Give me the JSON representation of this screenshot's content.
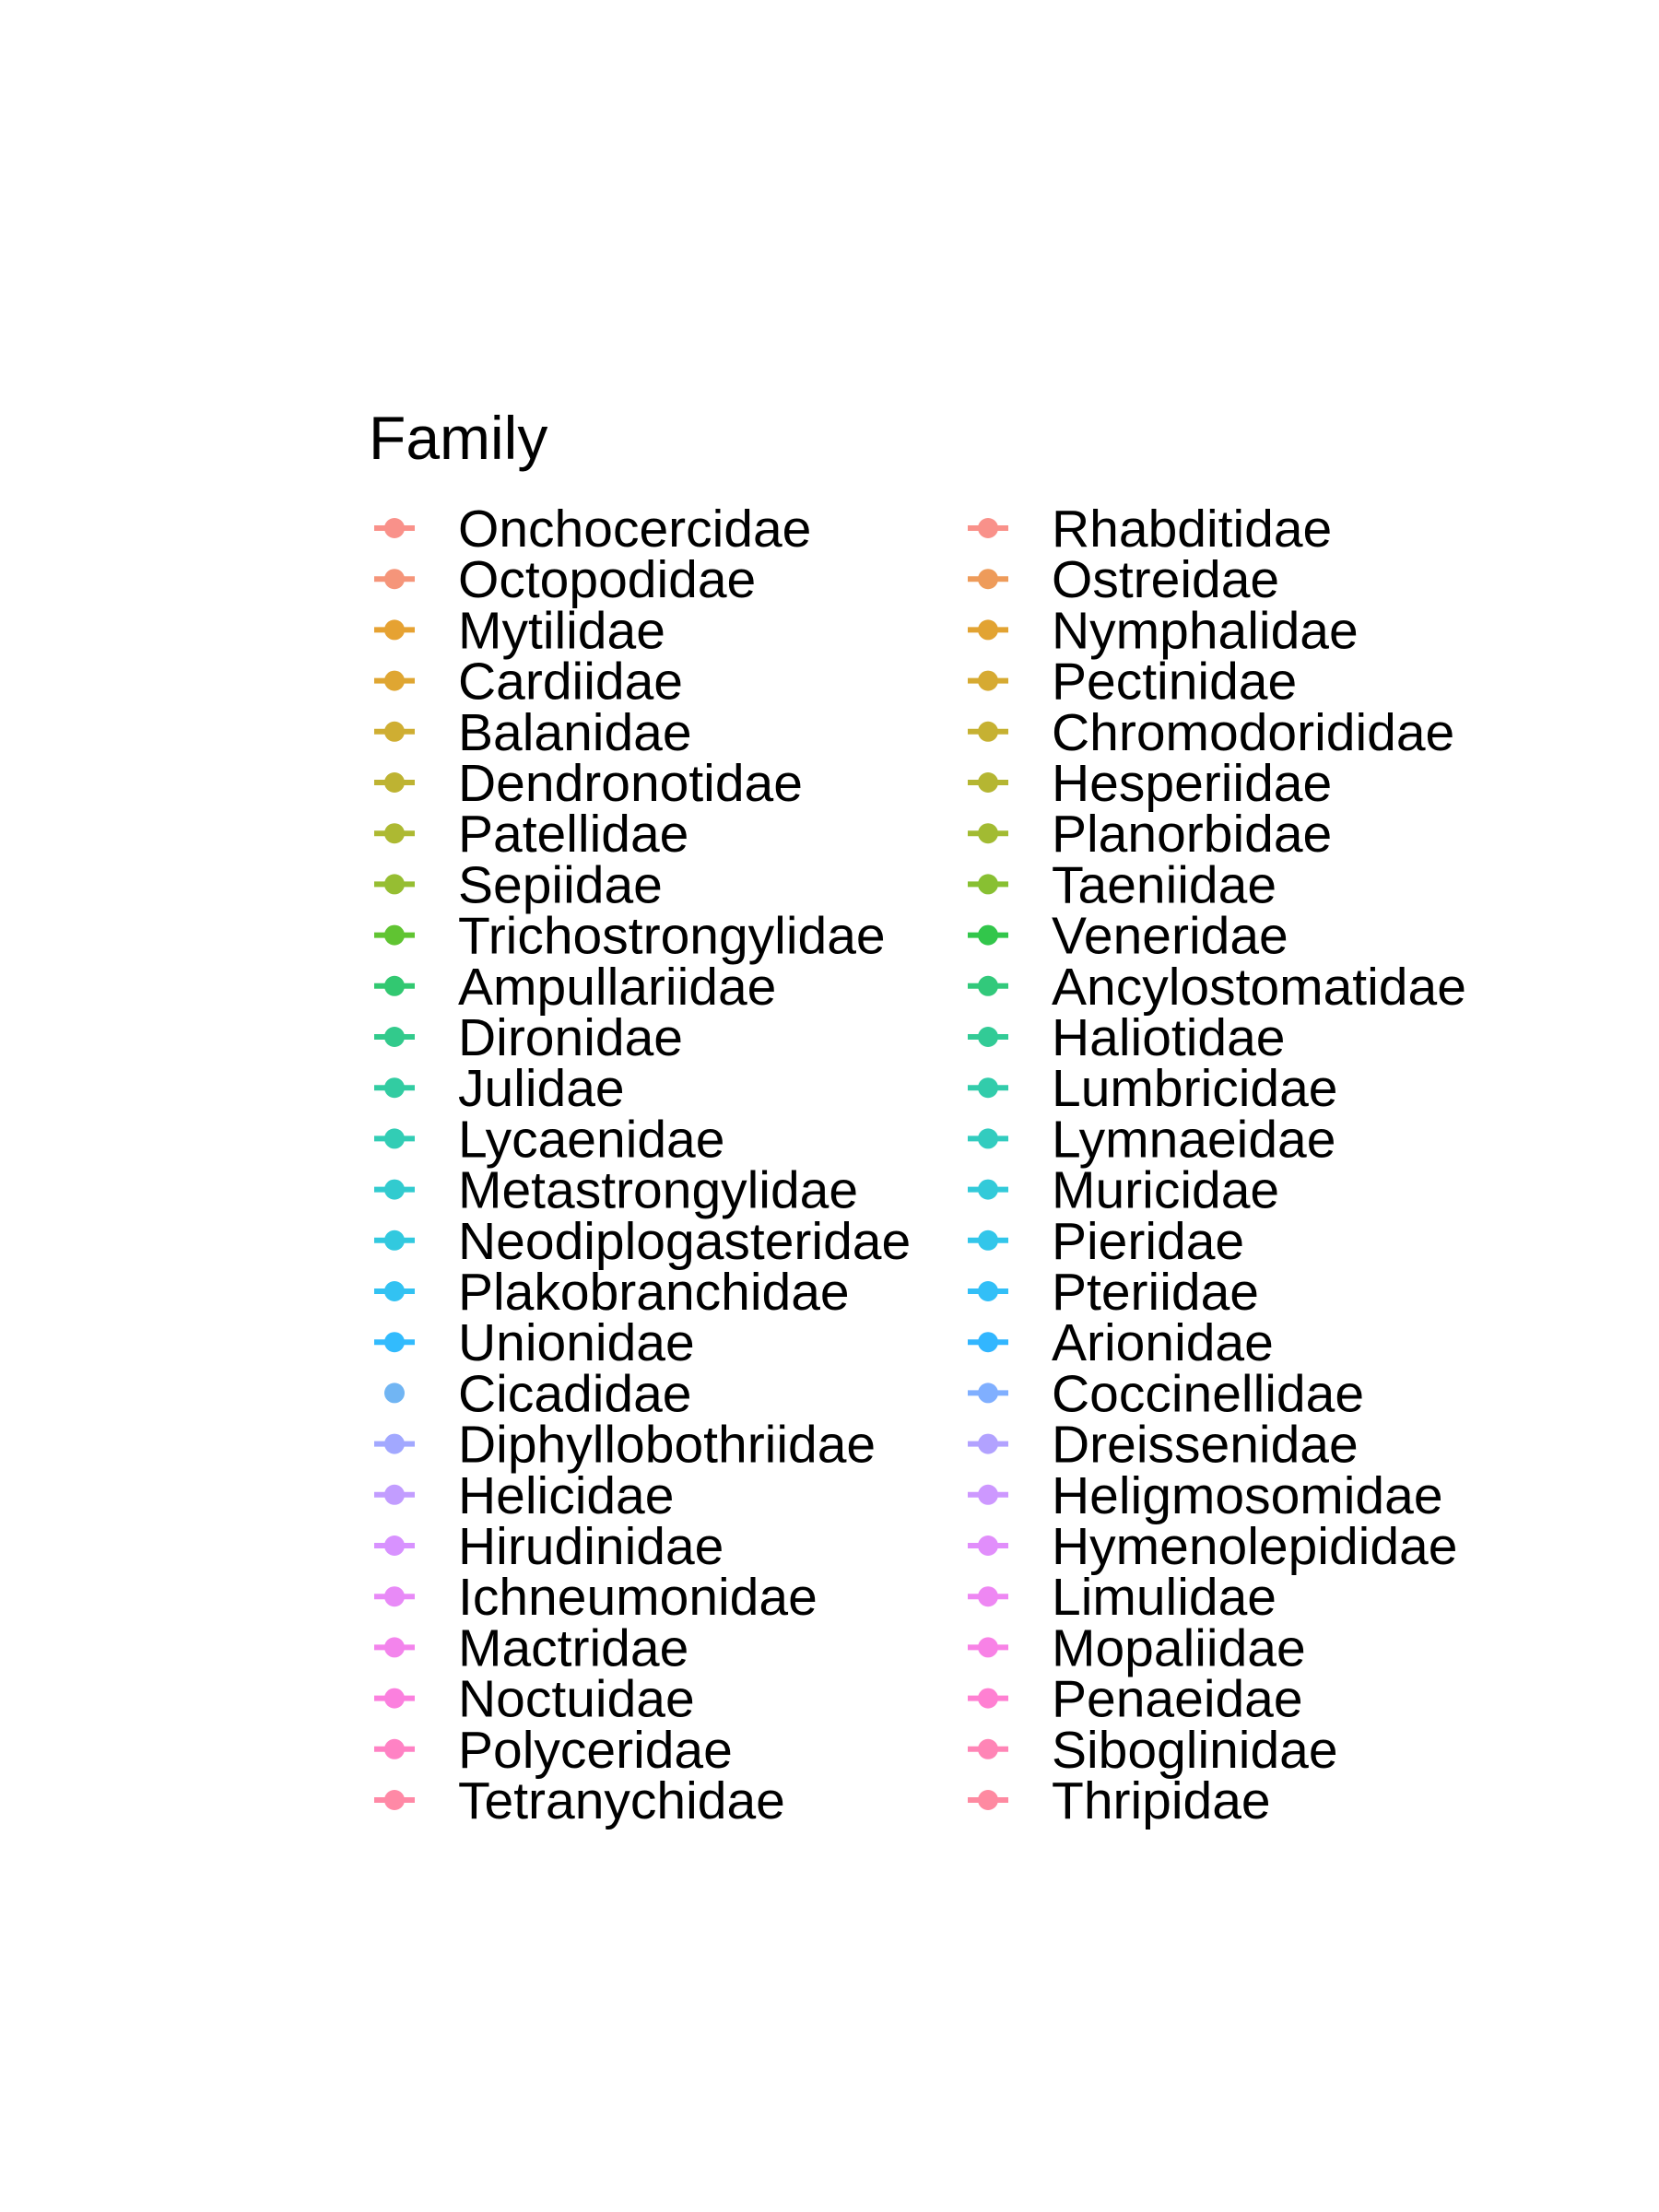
{
  "chart_data": {
    "type": "legend",
    "legend_title": "Family",
    "legend_columns": 2,
    "key_style": "line-with-point",
    "entries": [
      {
        "label": "Onchocercidae",
        "color": "#F8766D",
        "key": "line"
      },
      {
        "label": "Octopodidae",
        "color": "#F37B59",
        "key": "line"
      },
      {
        "label": "Mytilidae",
        "color": "#E08B00",
        "key": "line"
      },
      {
        "label": "Cardiidae",
        "color": "#D89000",
        "key": "line"
      },
      {
        "label": "Balanidae",
        "color": "#C49A00",
        "key": "line"
      },
      {
        "label": "Dendronotidae",
        "color": "#AFA100",
        "key": "line"
      },
      {
        "label": "Patellidae",
        "color": "#99A800",
        "key": "line"
      },
      {
        "label": "Sepiidae",
        "color": "#7CAE00",
        "key": "line"
      },
      {
        "label": "Trichostrongylidae",
        "color": "#39B600",
        "key": "line"
      },
      {
        "label": "Ampullariidae",
        "color": "#00BB4E",
        "key": "line"
      },
      {
        "label": "Dironidae",
        "color": "#00BE70",
        "key": "line"
      },
      {
        "label": "Julidae",
        "color": "#00C08B",
        "key": "line"
      },
      {
        "label": "Lycaenidae",
        "color": "#00C1A3",
        "key": "line"
      },
      {
        "label": "Metastrongylidae",
        "color": "#00BFC4",
        "key": "line"
      },
      {
        "label": "Neodiplogasteridae",
        "color": "#00BCD8",
        "key": "line"
      },
      {
        "label": "Plakobranchidae",
        "color": "#00B4EF",
        "key": "line"
      },
      {
        "label": "Unionidae",
        "color": "#00ABFD",
        "key": "line"
      },
      {
        "label": "Cicadidae",
        "color": "#4DA3F0",
        "key": "point"
      },
      {
        "label": "Diphyllobothriidae",
        "color": "#8B93FF",
        "key": "line"
      },
      {
        "label": "Helicidae",
        "color": "#B385FF",
        "key": "line"
      },
      {
        "label": "Hirudinidae",
        "color": "#CF78FF",
        "key": "line"
      },
      {
        "label": "Ichneumonidae",
        "color": "#E36EF6",
        "key": "line"
      },
      {
        "label": "Mactridae",
        "color": "#F166E8",
        "key": "line"
      },
      {
        "label": "Noctuidae",
        "color": "#FB61D7",
        "key": "line"
      },
      {
        "label": "Polyceridae",
        "color": "#FF63B6",
        "key": "line"
      },
      {
        "label": "Tetranychidae",
        "color": "#FF6C91",
        "key": "line"
      },
      {
        "label": "Rhabditidae",
        "color": "#F8766D",
        "key": "line"
      },
      {
        "label": "Ostreidae",
        "color": "#EA8331",
        "key": "line"
      },
      {
        "label": "Nymphalidae",
        "color": "#DC8D00",
        "key": "line"
      },
      {
        "label": "Pectinidae",
        "color": "#CC9600",
        "key": "line"
      },
      {
        "label": "Chromodorididae",
        "color": "#B89E00",
        "key": "line"
      },
      {
        "label": "Hesperiidae",
        "color": "#A3A500",
        "key": "line"
      },
      {
        "label": "Planorbidae",
        "color": "#8CAB00",
        "key": "line"
      },
      {
        "label": "Taeniidae",
        "color": "#6BB100",
        "key": "line"
      },
      {
        "label": "Veneridae",
        "color": "#00B81F",
        "key": "line"
      },
      {
        "label": "Ancylostomatidae",
        "color": "#00BC5B",
        "key": "line"
      },
      {
        "label": "Haliotidae",
        "color": "#00BF7D",
        "key": "line"
      },
      {
        "label": "Lumbricidae",
        "color": "#00C097",
        "key": "line"
      },
      {
        "label": "Lymnaeidae",
        "color": "#00C0B0",
        "key": "line"
      },
      {
        "label": "Muricidae",
        "color": "#00BDD0",
        "key": "line"
      },
      {
        "label": "Pieridae",
        "color": "#00B8E5",
        "key": "line"
      },
      {
        "label": "Pteriidae",
        "color": "#00B0F6",
        "key": "line"
      },
      {
        "label": "Arionidae",
        "color": "#00A5FF",
        "key": "line"
      },
      {
        "label": "Coccinellidae",
        "color": "#619CFF",
        "key": "line"
      },
      {
        "label": "Dreissenidae",
        "color": "#9F8CFF",
        "key": "line"
      },
      {
        "label": "Heligmosomidae",
        "color": "#C17FFF",
        "key": "line"
      },
      {
        "label": "Hymenolepididae",
        "color": "#DA72FB",
        "key": "line"
      },
      {
        "label": "Limulidae",
        "color": "#EA6AF1",
        "key": "line"
      },
      {
        "label": "Mopaliidae",
        "color": "#F763E0",
        "key": "line"
      },
      {
        "label": "Penaeidae",
        "color": "#FF61C7",
        "key": "line"
      },
      {
        "label": "Siboglinidae",
        "color": "#FF67A4",
        "key": "line"
      },
      {
        "label": "Thripidae",
        "color": "#FE6E8A",
        "key": "line"
      }
    ]
  }
}
